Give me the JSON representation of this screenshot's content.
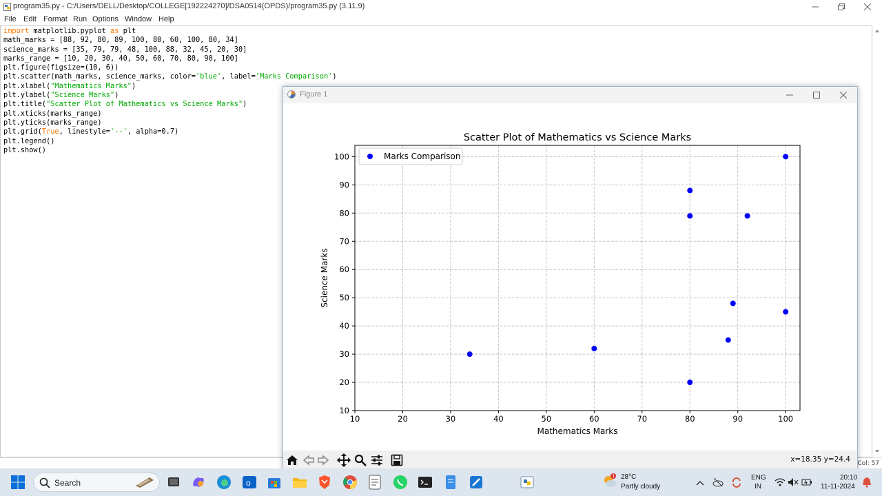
{
  "window": {
    "title": "program35.py - C:/Users/DELL/Desktop/COLLEGE[192224270]/DSA0514(OPDS)/program35.py (3.11.9)"
  },
  "menu": {
    "items": [
      "File",
      "Edit",
      "Format",
      "Run",
      "Options",
      "Window",
      "Help"
    ]
  },
  "editor": {
    "lines": [
      [
        {
          "t": "import",
          "c": "kw"
        },
        {
          "t": " matplotlib.pyplot ",
          "c": ""
        },
        {
          "t": "as",
          "c": "kw"
        },
        {
          "t": " plt",
          "c": ""
        }
      ],
      [
        {
          "t": "math_marks = [88, 92, 80, 89, 100, 80, 60, 100, 80, 34]",
          "c": ""
        }
      ],
      [
        {
          "t": "science_marks = [35, 79, 79, 48, 100, 88, 32, 45, 20, 30]",
          "c": ""
        }
      ],
      [
        {
          "t": "marks_range = [10, 20, 30, 40, 50, 60, 70, 80, 90, 100]",
          "c": ""
        }
      ],
      [
        {
          "t": "plt.figure(figsize=(10, 6))",
          "c": ""
        }
      ],
      [
        {
          "t": "plt.scatter(math_marks, science_marks, color=",
          "c": ""
        },
        {
          "t": "'blue'",
          "c": "str"
        },
        {
          "t": ", label=",
          "c": ""
        },
        {
          "t": "'Marks Comparison'",
          "c": "str"
        },
        {
          "t": ")",
          "c": ""
        }
      ],
      [
        {
          "t": "plt.xlabel(",
          "c": ""
        },
        {
          "t": "\"Mathematics Marks\"",
          "c": "str"
        },
        {
          "t": ")",
          "c": ""
        }
      ],
      [
        {
          "t": "plt.ylabel(",
          "c": ""
        },
        {
          "t": "\"Science Marks\"",
          "c": "str"
        },
        {
          "t": ")",
          "c": ""
        }
      ],
      [
        {
          "t": "plt.title(",
          "c": ""
        },
        {
          "t": "\"Scatter Plot of Mathematics vs Science Marks\"",
          "c": "str"
        },
        {
          "t": ")",
          "c": ""
        }
      ],
      [
        {
          "t": "plt.xticks(marks_range)",
          "c": ""
        }
      ],
      [
        {
          "t": "plt.yticks(marks_range)",
          "c": ""
        }
      ],
      [
        {
          "t": "plt.grid(",
          "c": ""
        },
        {
          "t": "True",
          "c": "kw"
        },
        {
          "t": ", linestyle=",
          "c": ""
        },
        {
          "t": "'--'",
          "c": "str"
        },
        {
          "t": ", alpha=0.7)",
          "c": ""
        }
      ],
      [
        {
          "t": "plt.legend()",
          "c": ""
        }
      ],
      [
        {
          "t": "plt.show()",
          "c": ""
        }
      ]
    ]
  },
  "status": {
    "col": "Col: 57"
  },
  "figure_window": {
    "title": "Figure 1",
    "coords": "x=18.35 y=24.4",
    "toolbar_icons": [
      "home-icon",
      "back-icon",
      "forward-icon",
      "pan-icon",
      "zoom-icon",
      "configure-icon",
      "save-icon"
    ]
  },
  "chart_data": {
    "type": "scatter",
    "title": "Scatter Plot of Mathematics vs Science Marks",
    "xlabel": "Mathematics Marks",
    "ylabel": "Science Marks",
    "xlim": [
      10,
      103
    ],
    "ylim": [
      10,
      104
    ],
    "xticks": [
      10,
      20,
      30,
      40,
      50,
      60,
      70,
      80,
      90,
      100
    ],
    "yticks": [
      10,
      20,
      30,
      40,
      50,
      60,
      70,
      80,
      90,
      100
    ],
    "grid": true,
    "legend_placement": "upper-left",
    "color": "#0000ff",
    "series": [
      {
        "name": "Marks Comparison",
        "x": [
          88,
          92,
          80,
          89,
          100,
          80,
          60,
          100,
          80,
          34
        ],
        "y": [
          35,
          79,
          79,
          48,
          100,
          88,
          32,
          45,
          20,
          30
        ]
      }
    ]
  },
  "taskbar": {
    "search_label": "Search",
    "weather_temp": "28°C",
    "weather_desc": "Partly cloudy",
    "weather_badge": "1",
    "lang_1": "ENG",
    "lang_2": "IN",
    "time": "20:10",
    "date": "11-11-2024"
  }
}
